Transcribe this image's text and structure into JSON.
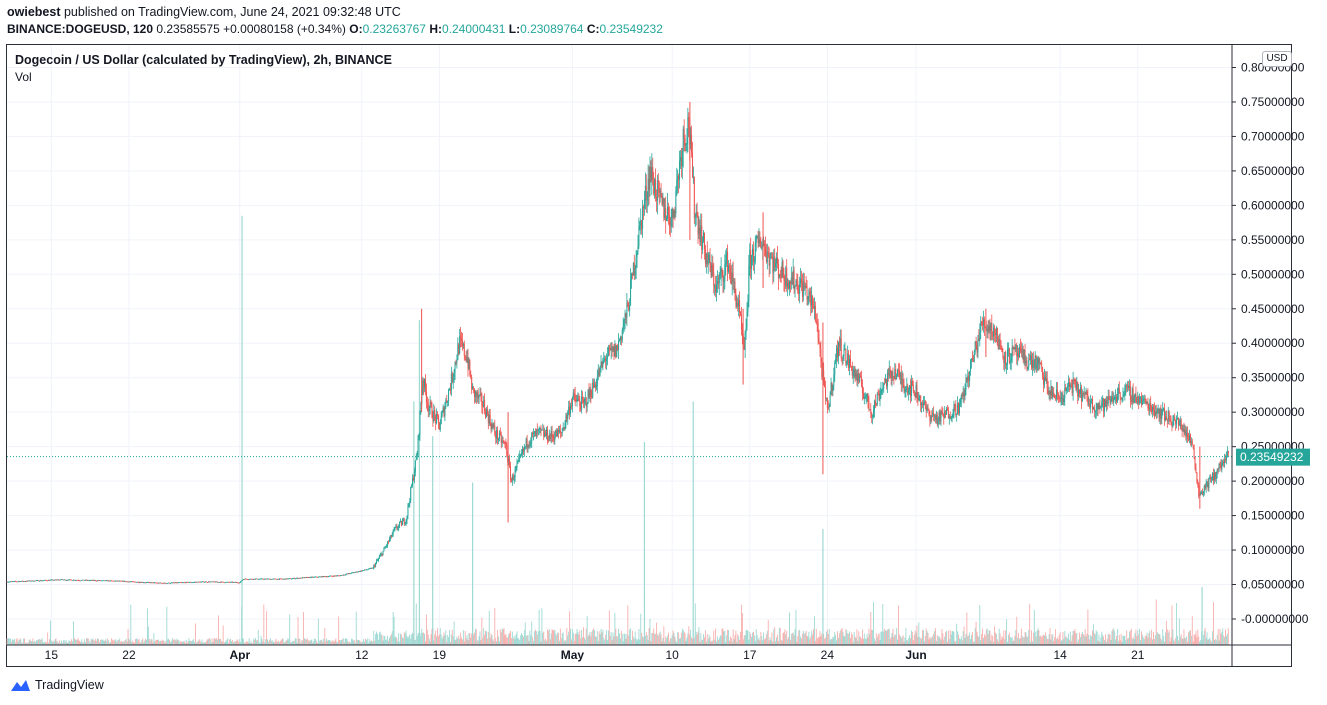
{
  "header": {
    "author": "owiebest",
    "published_text": "published on TradingView.com, June 24, 2021 09:32:48 UTC",
    "symbol_line": "BINANCE:DOGEUSD, 120",
    "last": "0.23585575",
    "change": "+0.00080158 (+0.34%)",
    "o_label": "O:",
    "o": "0.23263767",
    "h_label": "H:",
    "h": "0.24000431",
    "l_label": "L:",
    "l": "0.23089764",
    "c_label": "C:",
    "c": "0.23549232"
  },
  "legend": {
    "title": "Dogecoin / US Dollar (calculated by TradingView), 2h, BINANCE",
    "volume_label": "Vol"
  },
  "currency": "USD",
  "brand": "TradingView",
  "colors": {
    "up": "#26a69a",
    "down": "#ef5350",
    "up_vol": "#9ed9d3",
    "down_vol": "#f7b0ae",
    "grid": "#f0f3fa",
    "price_line": "#26a69a"
  },
  "chart_data": {
    "type": "candlestick",
    "title": "Dogecoin / US Dollar (calculated by TradingView), 2h, BINANCE",
    "ylim": [
      -0.008,
      0.8
    ],
    "y_ticks": [
      "0.80000000",
      "0.75000000",
      "0.70000000",
      "0.65000000",
      "0.60000000",
      "0.55000000",
      "0.50000000",
      "0.45000000",
      "0.40000000",
      "0.35000000",
      "0.30000000",
      "0.25000000",
      "0.20000000",
      "0.15000000",
      "0.10000000",
      "0.05000000",
      "-0.00000000"
    ],
    "y_tick_values": [
      0.8,
      0.75,
      0.7,
      0.65,
      0.6,
      0.55,
      0.5,
      0.45,
      0.4,
      0.35,
      0.3,
      0.25,
      0.2,
      0.15,
      0.1,
      0.05,
      0.0
    ],
    "x_range_days": [
      0,
      110.5
    ],
    "x_ticks": [
      {
        "label": "15",
        "day": 4,
        "bold": false
      },
      {
        "label": "22",
        "day": 11,
        "bold": false
      },
      {
        "label": "Apr",
        "day": 21,
        "bold": true
      },
      {
        "label": "12",
        "day": 32,
        "bold": false
      },
      {
        "label": "19",
        "day": 39,
        "bold": false
      },
      {
        "label": "May",
        "day": 51,
        "bold": true
      },
      {
        "label": "10",
        "day": 60,
        "bold": false
      },
      {
        "label": "17",
        "day": 67,
        "bold": false
      },
      {
        "label": "24",
        "day": 74,
        "bold": false
      },
      {
        "label": "Jun",
        "day": 82,
        "bold": true
      },
      {
        "label": "14",
        "day": 95,
        "bold": false
      },
      {
        "label": "21",
        "day": 102,
        "bold": false
      }
    ],
    "price_path": [
      [
        0,
        0.054
      ],
      [
        5,
        0.057
      ],
      [
        10,
        0.055
      ],
      [
        14,
        0.052
      ],
      [
        18,
        0.054
      ],
      [
        21,
        0.053
      ],
      [
        21.3,
        0.058
      ],
      [
        25,
        0.058
      ],
      [
        28,
        0.061
      ],
      [
        30,
        0.063
      ],
      [
        32,
        0.07
      ],
      [
        33,
        0.074
      ],
      [
        34,
        0.1
      ],
      [
        35,
        0.13
      ],
      [
        36,
        0.145
      ],
      [
        37,
        0.24
      ],
      [
        37.5,
        0.35
      ],
      [
        38,
        0.31
      ],
      [
        39,
        0.28
      ],
      [
        40,
        0.34
      ],
      [
        40.8,
        0.4
      ],
      [
        41.5,
        0.38
      ],
      [
        42,
        0.33
      ],
      [
        43,
        0.31
      ],
      [
        44,
        0.27
      ],
      [
        45,
        0.25
      ],
      [
        45.5,
        0.2
      ],
      [
        46,
        0.22
      ],
      [
        47,
        0.26
      ],
      [
        48,
        0.27
      ],
      [
        49,
        0.265
      ],
      [
        50,
        0.27
      ],
      [
        51,
        0.32
      ],
      [
        52,
        0.31
      ],
      [
        53,
        0.34
      ],
      [
        54,
        0.38
      ],
      [
        55,
        0.39
      ],
      [
        56,
        0.45
      ],
      [
        57,
        0.56
      ],
      [
        58,
        0.65
      ],
      [
        59,
        0.6
      ],
      [
        60,
        0.58
      ],
      [
        61,
        0.7
      ],
      [
        61.5,
        0.72
      ],
      [
        62,
        0.6
      ],
      [
        63,
        0.53
      ],
      [
        64,
        0.48
      ],
      [
        65,
        0.52
      ],
      [
        66,
        0.45
      ],
      [
        66.5,
        0.38
      ],
      [
        67,
        0.52
      ],
      [
        68,
        0.55
      ],
      [
        69,
        0.52
      ],
      [
        70,
        0.5
      ],
      [
        71,
        0.49
      ],
      [
        72,
        0.48
      ],
      [
        73,
        0.44
      ],
      [
        73.5,
        0.36
      ],
      [
        74,
        0.3
      ],
      [
        75,
        0.4
      ],
      [
        76,
        0.37
      ],
      [
        77,
        0.34
      ],
      [
        78,
        0.3
      ],
      [
        79,
        0.34
      ],
      [
        80,
        0.36
      ],
      [
        81,
        0.34
      ],
      [
        82,
        0.33
      ],
      [
        83,
        0.3
      ],
      [
        84,
        0.29
      ],
      [
        85,
        0.3
      ],
      [
        86,
        0.31
      ],
      [
        87,
        0.37
      ],
      [
        88,
        0.43
      ],
      [
        89,
        0.42
      ],
      [
        90,
        0.38
      ],
      [
        91,
        0.385
      ],
      [
        92,
        0.375
      ],
      [
        93,
        0.37
      ],
      [
        94,
        0.33
      ],
      [
        95,
        0.32
      ],
      [
        96,
        0.34
      ],
      [
        97,
        0.325
      ],
      [
        98,
        0.31
      ],
      [
        99,
        0.31
      ],
      [
        100,
        0.325
      ],
      [
        101,
        0.33
      ],
      [
        102,
        0.32
      ],
      [
        103,
        0.31
      ],
      [
        104,
        0.3
      ],
      [
        105,
        0.29
      ],
      [
        106,
        0.28
      ],
      [
        107,
        0.25
      ],
      [
        107.5,
        0.18
      ],
      [
        108,
        0.19
      ],
      [
        109,
        0.21
      ],
      [
        110,
        0.235
      ]
    ],
    "spikes": [
      {
        "day": 73.6,
        "low": 0.21,
        "high": 0.43
      },
      {
        "day": 45.2,
        "low": 0.14,
        "high": 0.3
      },
      {
        "day": 37.4,
        "low": 0.3,
        "high": 0.45
      },
      {
        "day": 61.6,
        "low": 0.55,
        "high": 0.75
      },
      {
        "day": 68.2,
        "low": 0.48,
        "high": 0.59
      },
      {
        "day": 88.3,
        "low": 0.38,
        "high": 0.45
      },
      {
        "day": 107.6,
        "low": 0.16,
        "high": 0.25
      },
      {
        "day": 66.4,
        "low": 0.34,
        "high": 0.45
      }
    ],
    "volume_spikes": [
      {
        "day": 21.2,
        "height": 0.74
      },
      {
        "day": 37.2,
        "height": 0.56
      },
      {
        "day": 36.7,
        "height": 0.42
      },
      {
        "day": 38.4,
        "height": 0.36
      },
      {
        "day": 57.5,
        "height": 0.35
      },
      {
        "day": 61.9,
        "height": 0.42
      },
      {
        "day": 42.0,
        "height": 0.28
      },
      {
        "day": 73.6,
        "height": 0.2
      },
      {
        "day": 107.8,
        "height": 0.1
      }
    ],
    "current_price": 0.23549232,
    "current_price_label": "0.23549232"
  }
}
